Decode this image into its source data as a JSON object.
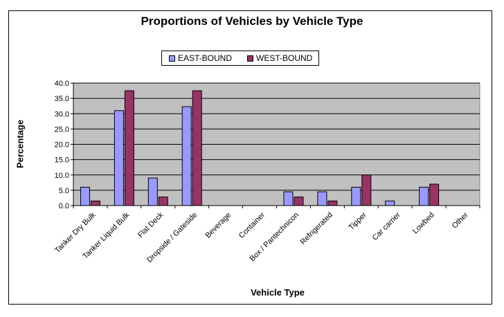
{
  "chart_data": {
    "type": "bar",
    "title": "Proportions of Vehicles by Vehicle Type",
    "xlabel": "Vehicle Type",
    "ylabel": "Percentage",
    "ylim": [
      0,
      40
    ],
    "yticks": [
      "0.0",
      "5.0",
      "10.0",
      "15.0",
      "20.0",
      "25.0",
      "30.0",
      "35.0",
      "40.0"
    ],
    "grid": true,
    "legend_position": "top-center",
    "plot_background": "#c0c0c0",
    "categories": [
      "Tanker Dry Bulk",
      "Tanker Liquid Bulk",
      "Flat Deck",
      "Dropside / Gateside",
      "Beverage",
      "Container",
      "Box / Pantechnicon",
      "Refrigerated",
      "Tipper",
      "Car carrier",
      "Lowbed",
      "Other"
    ],
    "series": [
      {
        "name": "EAST-BOUND",
        "color": "#9999ff",
        "values": [
          6.0,
          31.0,
          9.0,
          32.3,
          0,
          0,
          4.5,
          4.5,
          6.0,
          1.5,
          6.0,
          0
        ]
      },
      {
        "name": "WEST-BOUND",
        "color": "#993366",
        "values": [
          1.5,
          37.5,
          2.8,
          37.5,
          0,
          0,
          2.8,
          1.5,
          10.0,
          0,
          7.0,
          0
        ]
      }
    ]
  }
}
